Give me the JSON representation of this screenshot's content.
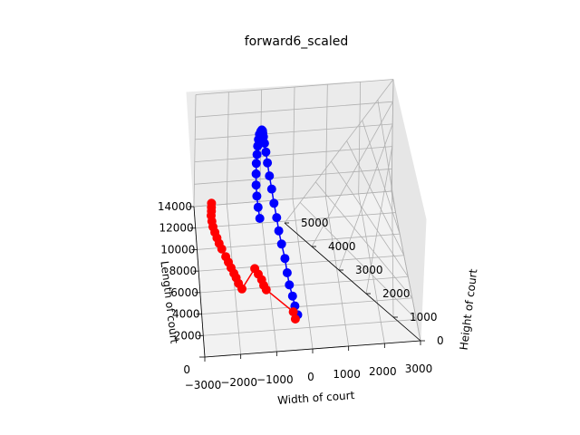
{
  "chart_data": {
    "type": "scatter",
    "title": "forward6_scaled",
    "xlabel": "Width of court",
    "ylabel": "Length of court",
    "zlabel": "Height of court",
    "xlim": [
      -3000,
      3000
    ],
    "ylim": [
      0,
      14000
    ],
    "zlim": [
      0,
      5000
    ],
    "x_ticks": [
      "3000",
      "2000",
      "1000",
      "0",
      "−1000",
      "−2000",
      "−3000"
    ],
    "y_ticks": [
      "0",
      "2000",
      "4000",
      "6000",
      "8000",
      "10000",
      "12000",
      "14000"
    ],
    "z_ticks": [
      "0",
      "1000",
      "2000",
      "3000",
      "4000",
      "5000"
    ],
    "grid": true,
    "series": [
      {
        "color": "#0000ff",
        "points": [
          [
            150,
            1500,
            750
          ],
          [
            170,
            2000,
            900
          ],
          [
            190,
            2600,
            1050
          ],
          [
            210,
            3200,
            1250
          ],
          [
            240,
            3900,
            1450
          ],
          [
            270,
            4700,
            1700
          ],
          [
            280,
            5400,
            2000
          ],
          [
            290,
            6000,
            2300
          ],
          [
            300,
            6600,
            2600
          ],
          [
            290,
            7200,
            2950
          ],
          [
            270,
            7800,
            3300
          ],
          [
            240,
            8300,
            3650
          ],
          [
            200,
            8800,
            4000
          ],
          [
            160,
            9200,
            4300
          ],
          [
            120,
            9500,
            4550
          ],
          [
            90,
            9700,
            4750
          ],
          [
            60,
            9850,
            4850
          ],
          [
            40,
            9950,
            4900
          ],
          [
            10,
            10000,
            4920
          ],
          [
            -20,
            9950,
            4880
          ],
          [
            -50,
            9850,
            4800
          ],
          [
            -80,
            9700,
            4650
          ],
          [
            -110,
            9500,
            4450
          ],
          [
            -140,
            9250,
            4200
          ],
          [
            -170,
            8950,
            3950
          ],
          [
            -200,
            8600,
            3650
          ],
          [
            -230,
            8200,
            3350
          ],
          [
            -250,
            7800,
            3050
          ],
          [
            -270,
            7400,
            2750
          ],
          [
            -290,
            7000,
            2450
          ]
        ]
      },
      {
        "color": "#ff0000",
        "points": [
          [
            50,
            1250,
            700
          ],
          [
            60,
            1700,
            800
          ],
          [
            -600,
            3500,
            1000
          ],
          [
            -620,
            3700,
            1100
          ],
          [
            -600,
            3900,
            1250
          ],
          [
            -620,
            4100,
            1400
          ],
          [
            -650,
            4300,
            1550
          ],
          [
            -1200,
            3400,
            1150
          ],
          [
            -1220,
            3600,
            1300
          ],
          [
            -1210,
            3800,
            1450
          ],
          [
            -1230,
            4000,
            1550
          ],
          [
            -1240,
            4200,
            1700
          ],
          [
            -1250,
            4400,
            1850
          ],
          [
            -1260,
            4600,
            2000
          ],
          [
            -1300,
            4900,
            2200
          ],
          [
            -1320,
            5100,
            2350
          ],
          [
            -1330,
            5300,
            2500
          ],
          [
            -1340,
            5500,
            2650
          ],
          [
            -1350,
            5700,
            2800
          ],
          [
            -1340,
            5900,
            2950
          ],
          [
            -1320,
            6100,
            3100
          ],
          [
            -1300,
            6300,
            3200
          ],
          [
            -1280,
            6450,
            3300
          ],
          [
            -1260,
            6600,
            3400
          ]
        ]
      }
    ]
  }
}
